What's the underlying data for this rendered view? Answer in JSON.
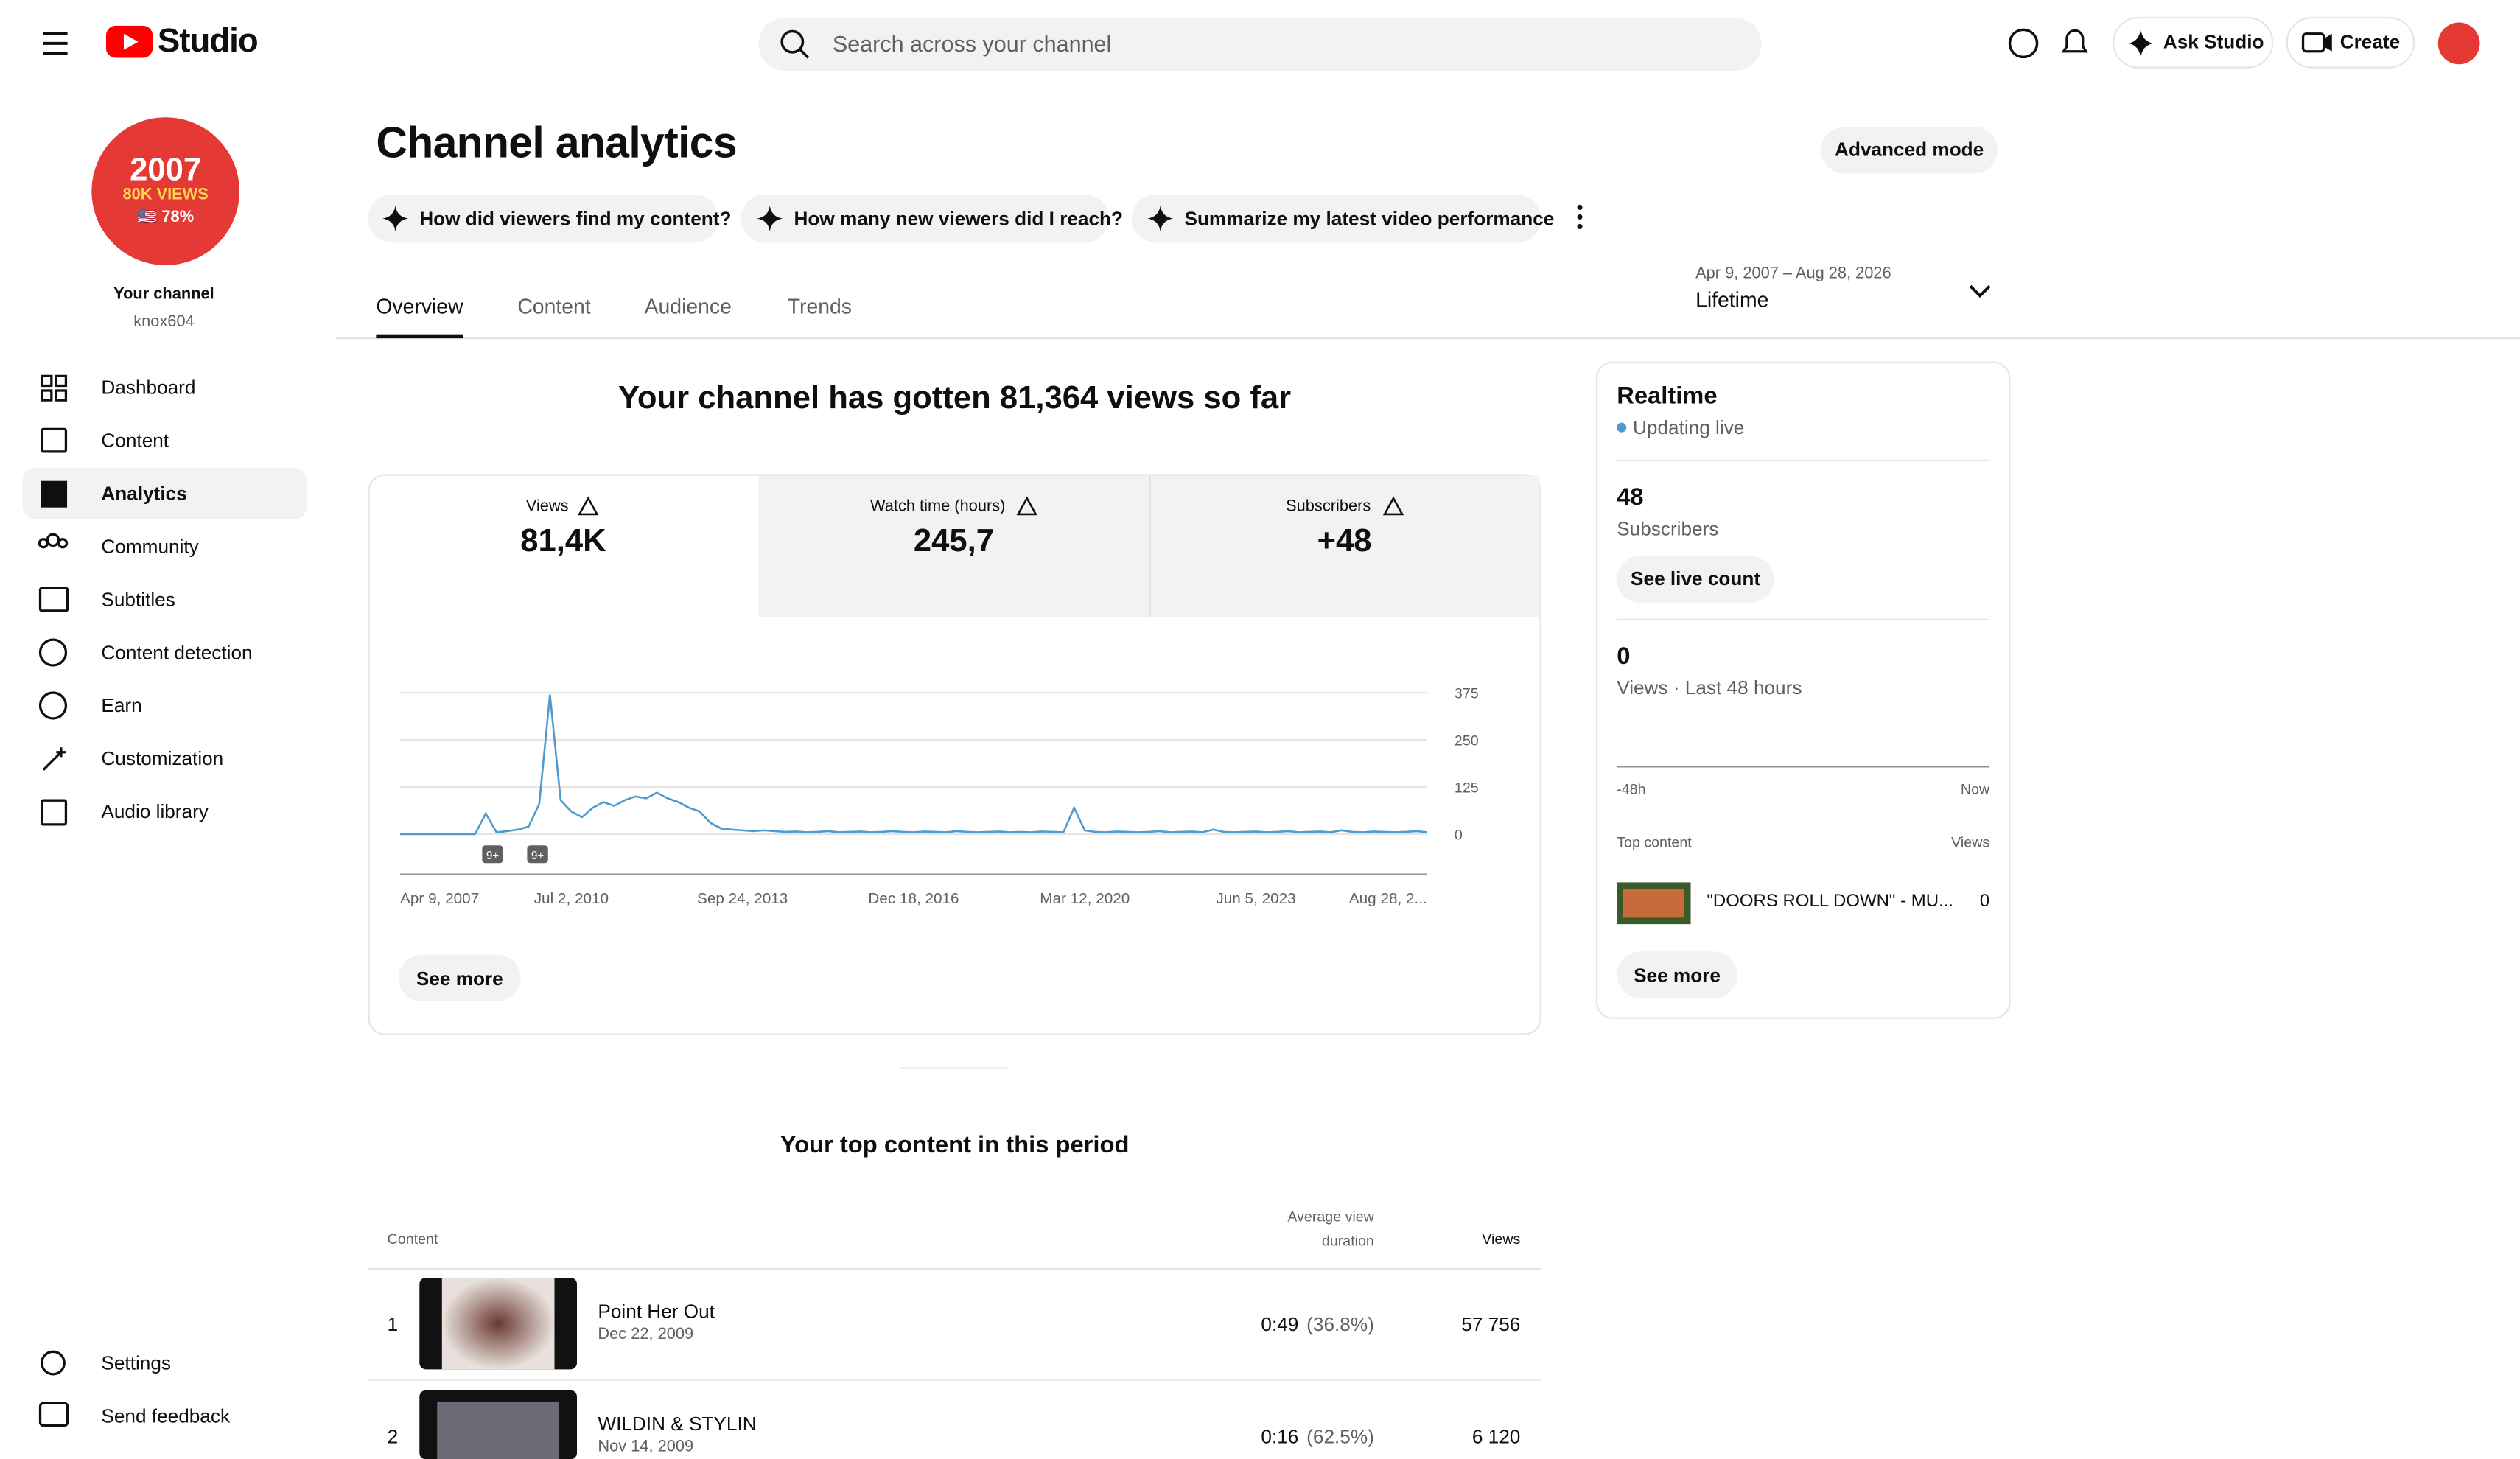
{
  "header": {
    "logo": "Studio",
    "search_placeholder": "Search across your channel",
    "ask": "Ask Studio",
    "create": "Create"
  },
  "sidebar": {
    "avatar": [
      "2007",
      "80K VIEWS",
      "🇺🇸 78%"
    ],
    "channel_label": "Your channel",
    "handle": "knox604",
    "nav": [
      "Dashboard",
      "Content",
      "Analytics",
      "Community",
      "Subtitles",
      "Content detection",
      "Earn",
      "Customization",
      "Audio library"
    ],
    "footer_nav": [
      "Settings",
      "Send feedback"
    ]
  },
  "main": {
    "title": "Channel analytics",
    "advanced": "Advanced mode",
    "prompts": [
      "How did viewers find my content?",
      "How many new viewers did I reach?",
      "Summarize my latest video performance"
    ],
    "tabs": [
      "Overview",
      "Content",
      "Audience",
      "Trends"
    ],
    "date_range": "Apr 9, 2007 – Aug 28, 2026",
    "period": "Lifetime",
    "headline": "Your channel has gotten 81,364 views so far",
    "metrics": [
      {
        "label": "Views",
        "value": "81,4K"
      },
      {
        "label": "Watch time (hours)",
        "value": "245,7"
      },
      {
        "label": "Subscribers",
        "value": "+48"
      }
    ],
    "see_more": "See more"
  },
  "chart_data": {
    "type": "line",
    "color": "#4f9ccc",
    "ylim": [
      0,
      375
    ],
    "yticks": [
      0,
      125,
      250,
      375
    ],
    "grid": true,
    "values": [
      0,
      0,
      0,
      0,
      0,
      0,
      0,
      0,
      55,
      5,
      8,
      12,
      20,
      80,
      370,
      90,
      60,
      45,
      70,
      85,
      75,
      90,
      100,
      95,
      110,
      95,
      85,
      70,
      60,
      30,
      15,
      12,
      10,
      8,
      10,
      8,
      6,
      7,
      5,
      6,
      8,
      5,
      6,
      7,
      5,
      6,
      8,
      6,
      5,
      7,
      6,
      5,
      8,
      6,
      5,
      6,
      7,
      5,
      6,
      5,
      7,
      6,
      5,
      70,
      10,
      6,
      5,
      7,
      6,
      5,
      6,
      8,
      5,
      6,
      7,
      5,
      12,
      6,
      5,
      6,
      7,
      5,
      6,
      8,
      5,
      6,
      7,
      5,
      10,
      6,
      5,
      7,
      6,
      5,
      6,
      8,
      5
    ],
    "xtick_labels": [
      "Apr 9, 2007",
      "Jul 2, 2010",
      "Sep 24, 2013",
      "Dec 18, 2016",
      "Mar 12, 2020",
      "Jun 5, 2023",
      "Aug 28, 2..."
    ],
    "annotations": [
      "9+",
      "9+"
    ]
  },
  "realtime": {
    "title": "Realtime",
    "status": "Updating live",
    "subscribers": "48",
    "subscribers_label": "Subscribers",
    "live_count": "See live count",
    "views": "0",
    "views_label": "Views · Last 48 hours",
    "axis": [
      "-48h",
      "Now"
    ],
    "top_label": "Top content",
    "views_col": "Views",
    "item_title": "\"DOORS ROLL DOWN\" - MU...",
    "item_views": "0",
    "see_more": "See more"
  },
  "top_content": {
    "title": "Your top content in this period",
    "columns": [
      "Content",
      "Average view duration",
      "Views"
    ],
    "rows": [
      {
        "rank": "1",
        "title": "Point Her Out",
        "date": "Dec 22, 2009",
        "duration": "0:49",
        "percent": "(36.8%)",
        "views": "57 756"
      },
      {
        "rank": "2",
        "title": "WILDIN & STYLIN",
        "date": "Nov 14, 2009",
        "duration": "0:16",
        "percent": "(62.5%)",
        "views": "6 120"
      }
    ]
  }
}
